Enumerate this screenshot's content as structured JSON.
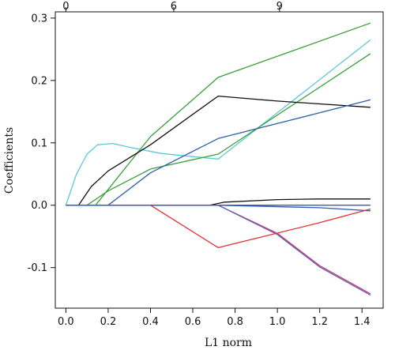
{
  "chart_data": {
    "type": "line",
    "title": "",
    "xlabel": "L1 norm",
    "ylabel": "Coefficients",
    "xlim": [
      -0.05,
      1.5
    ],
    "ylim": [
      -0.165,
      0.31
    ],
    "x_ticks": [
      0.0,
      0.2,
      0.4,
      0.6,
      0.8,
      1.0,
      1.2,
      1.4
    ],
    "x_tick_labels": [
      "0.0",
      "0.2",
      "0.4",
      "0.6",
      "0.8",
      "1.0",
      "1.2",
      "1.4"
    ],
    "y_ticks": [
      -0.1,
      0.0,
      0.1,
      0.2,
      0.3
    ],
    "y_tick_labels": [
      "-0.1",
      "0.0",
      "0.1",
      "0.2",
      "0.3"
    ],
    "top_axis": {
      "ticks": [
        0.0,
        0.51,
        1.01
      ],
      "labels": [
        "0",
        "6",
        "9"
      ]
    },
    "grid": false,
    "legend": "none",
    "series": [
      {
        "color": "#3a9e3a",
        "points": [
          [
            0.0,
            0.0
          ],
          [
            0.14,
            0.0
          ],
          [
            0.4,
            0.11
          ],
          [
            0.72,
            0.205
          ],
          [
            1.44,
            0.292
          ]
        ]
      },
      {
        "color": "#5bc8d8",
        "points": [
          [
            0.0,
            0.0
          ],
          [
            0.05,
            0.05
          ],
          [
            0.1,
            0.082
          ],
          [
            0.15,
            0.097
          ],
          [
            0.22,
            0.099
          ],
          [
            0.3,
            0.093
          ],
          [
            0.45,
            0.083
          ],
          [
            0.6,
            0.078
          ],
          [
            0.72,
            0.074
          ],
          [
            1.44,
            0.265
          ]
        ]
      },
      {
        "color": "#3a9e3a",
        "points": [
          [
            0.0,
            0.0
          ],
          [
            0.1,
            0.0
          ],
          [
            0.2,
            0.023
          ],
          [
            0.4,
            0.058
          ],
          [
            0.72,
            0.082
          ],
          [
            1.44,
            0.243
          ]
        ]
      },
      {
        "color": "#111111",
        "points": [
          [
            0.0,
            0.0
          ],
          [
            0.06,
            0.0
          ],
          [
            0.12,
            0.03
          ],
          [
            0.2,
            0.055
          ],
          [
            0.4,
            0.097
          ],
          [
            0.72,
            0.175
          ],
          [
            1.0,
            0.167
          ],
          [
            1.44,
            0.157
          ]
        ]
      },
      {
        "color": "#2e5fa8",
        "points": [
          [
            0.0,
            0.0
          ],
          [
            0.2,
            0.0
          ],
          [
            0.4,
            0.052
          ],
          [
            0.72,
            0.107
          ],
          [
            1.44,
            0.169
          ]
        ]
      },
      {
        "color": "#111111",
        "points": [
          [
            0.0,
            0.0
          ],
          [
            0.68,
            0.0
          ],
          [
            0.75,
            0.005
          ],
          [
            1.0,
            0.009
          ],
          [
            1.2,
            0.01
          ],
          [
            1.44,
            0.01
          ]
        ]
      },
      {
        "color": "#2e5fa8",
        "points": [
          [
            0.0,
            0.0
          ],
          [
            0.72,
            0.0
          ],
          [
            1.2,
            -0.004
          ],
          [
            1.44,
            -0.009
          ]
        ]
      },
      {
        "color": "#e03030",
        "points": [
          [
            0.4,
            0.0
          ],
          [
            0.72,
            -0.068
          ],
          [
            1.2,
            -0.028
          ],
          [
            1.44,
            -0.006
          ]
        ]
      },
      {
        "color": "#c43a78",
        "points": [
          [
            0.72,
            0.0
          ],
          [
            1.0,
            -0.045
          ],
          [
            1.2,
            -0.097
          ],
          [
            1.44,
            -0.142
          ]
        ]
      },
      {
        "color": "#6a5fb0",
        "points": [
          [
            0.72,
            0.0
          ],
          [
            1.0,
            -0.047
          ],
          [
            1.2,
            -0.099
          ],
          [
            1.44,
            -0.144
          ]
        ]
      },
      {
        "color": "#2d5bd6",
        "points": [
          [
            0.0,
            0.0
          ],
          [
            1.44,
            0.0
          ]
        ]
      }
    ]
  }
}
